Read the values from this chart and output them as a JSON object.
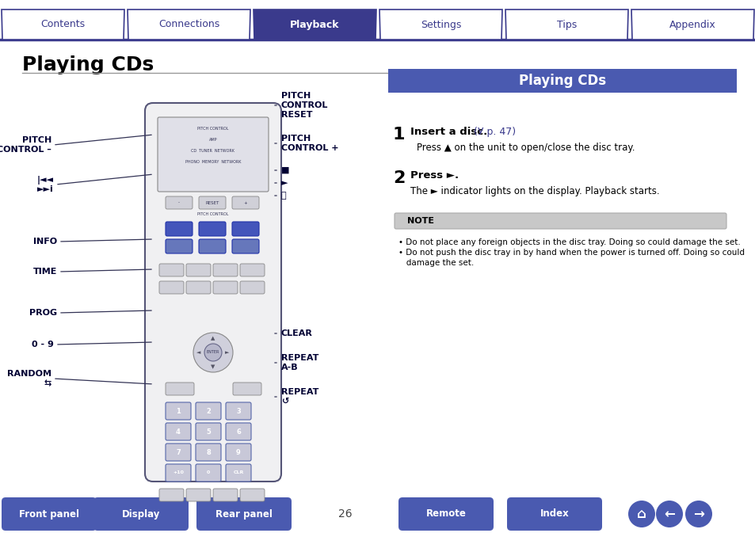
{
  "bg_color": "#ffffff",
  "title": "Playing CDs",
  "nav_tabs": [
    "Contents",
    "Connections",
    "Playback",
    "Settings",
    "Tips",
    "Appendix"
  ],
  "nav_active": 2,
  "nav_bg_inactive": "#ffffff",
  "nav_bg_active": "#3a3a8c",
  "nav_text_inactive": "#3a3a8c",
  "nav_text_active": "#ffffff",
  "nav_border": "#3a3a8c",
  "nav_line_color": "#3a3a8c",
  "section_header_bg": "#4a5ab0",
  "section_header_text": "#ffffff",
  "section_header_label": "Playing CDs",
  "step1_bold": "Insert a disc.",
  "step1_ref": "  (У p. 47)",
  "step1_bullet": "Press ▲ on the unit to open/close the disc tray.",
  "step2_bold": "Press ►.",
  "step2_text": "The ► indicator lights on the display. Playback starts.",
  "note_label": "NOTE",
  "note_lines": [
    "• Do not place any foreign objects in the disc tray. Doing so could damage the set.",
    "• Do not push the disc tray in by hand when the power is turned off. Doing so could",
    "   damage the set."
  ],
  "bottom_buttons": [
    "Front panel",
    "Display",
    "Rear panel",
    "Remote",
    "Index"
  ],
  "page_number": "26",
  "btn_bg": "#4a5ab0",
  "btn_text": "#ffffff",
  "remote_body_color": "#f0f0f2",
  "remote_border_color": "#555577",
  "remote_blue_btn": "#4455bb",
  "remote_gray_btn": "#c0c0cc"
}
